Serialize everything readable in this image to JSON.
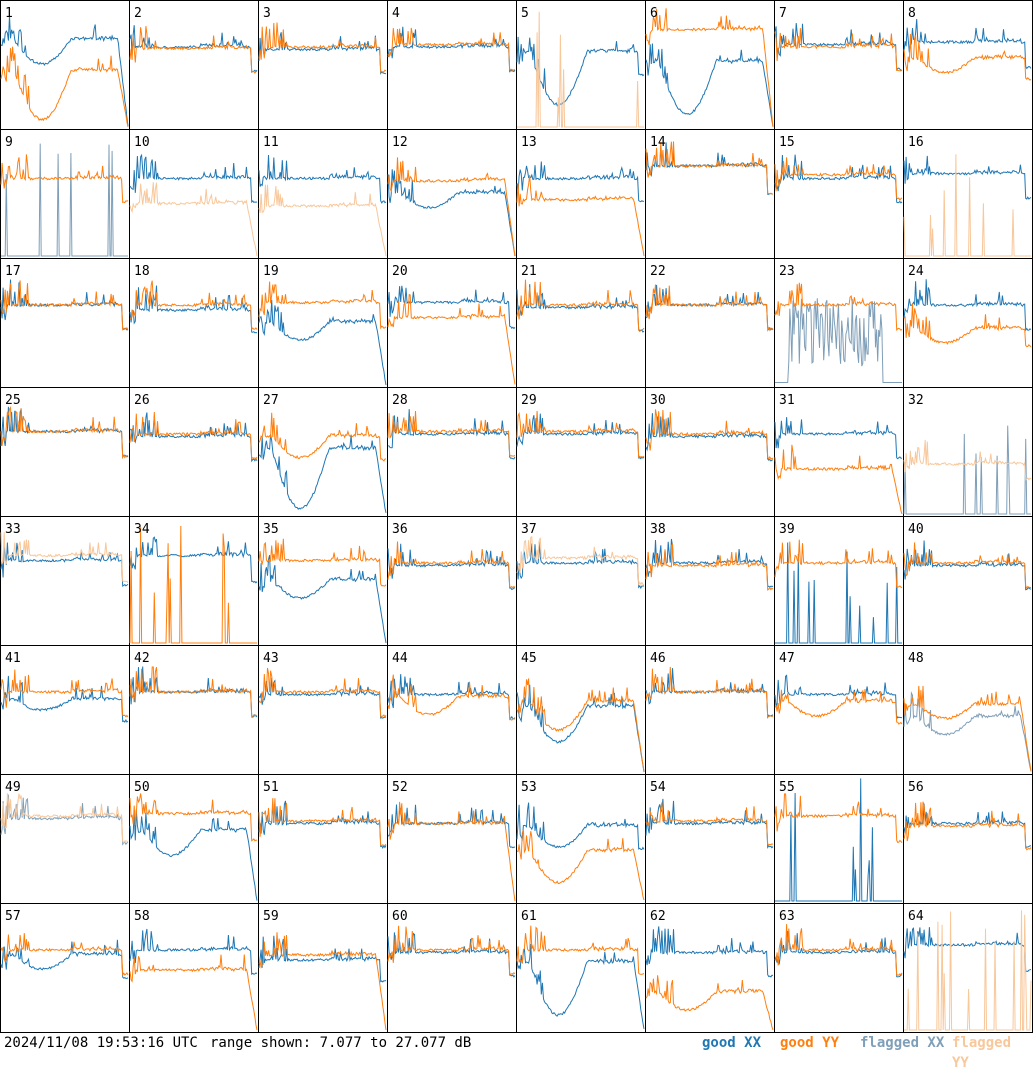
{
  "footer": {
    "timestamp": "2024/11/08 19:53:16 UTC",
    "range_text": "range shown: 7.077 to 27.077 dB"
  },
  "legend": [
    {
      "label": "good XX",
      "color": "#1f77b4"
    },
    {
      "label": "good YY",
      "color": "#ff7f0e"
    },
    {
      "label": "flagged XX",
      "color": "#7f9fb8"
    },
    {
      "label": "flagged YY",
      "color": "#f8c79a"
    }
  ],
  "chart_data": {
    "type": "line",
    "ylim": [
      7.077,
      27.077
    ],
    "yunit": "dB",
    "grid": "8x8 small multiples",
    "panels": [
      {
        "label": "1",
        "xx": {
          "level": 70,
          "shape": "dip",
          "dipDepth": 14,
          "drop": 1,
          "flag": false
        },
        "yy": {
          "level": 45,
          "shape": "dip",
          "dipDepth": 28,
          "drop": 1,
          "flag": false
        }
      },
      {
        "label": "2",
        "xx": {
          "level": 64,
          "shape": "flat",
          "drop": 0,
          "flag": false
        },
        "yy": {
          "level": 63,
          "shape": "flat",
          "drop": 0,
          "flag": false
        }
      },
      {
        "label": "3",
        "xx": {
          "level": 62,
          "shape": "flat",
          "drop": 0,
          "flag": false
        },
        "yy": {
          "level": 64,
          "shape": "flat",
          "drop": 0,
          "flag": false
        }
      },
      {
        "label": "4",
        "xx": {
          "level": 64,
          "shape": "flat",
          "drop": 0,
          "flag": false
        },
        "yy": {
          "level": 66,
          "shape": "flat",
          "drop": 0,
          "flag": false
        }
      },
      {
        "label": "5",
        "xx": {
          "level": 60,
          "shape": "dip",
          "dipDepth": 30,
          "drop": 0,
          "flag": false
        },
        "yy": {
          "level": 0,
          "shape": "spikes",
          "drop": 0,
          "flag": true
        }
      },
      {
        "label": "6",
        "xx": {
          "level": 52,
          "shape": "dip",
          "dipDepth": 30,
          "drop": 1,
          "flag": false
        },
        "yy": {
          "level": 78,
          "shape": "flat",
          "drop": 1,
          "flag": false
        }
      },
      {
        "label": "7",
        "xx": {
          "level": 66,
          "shape": "flat",
          "drop": 0,
          "flag": false
        },
        "yy": {
          "level": 64,
          "shape": "flat",
          "drop": 0,
          "flag": false
        }
      },
      {
        "label": "8",
        "xx": {
          "level": 68,
          "shape": "flat",
          "drop": 0,
          "flag": false
        },
        "yy": {
          "level": 55,
          "shape": "dip",
          "dipDepth": 8,
          "drop": 0,
          "flag": false
        }
      },
      {
        "label": "9",
        "xx": {
          "level": 0,
          "shape": "spikes",
          "drop": 0,
          "flag": true
        },
        "yy": {
          "level": 62,
          "shape": "flat",
          "drop": 0,
          "flag": false
        }
      },
      {
        "label": "10",
        "xx": {
          "level": 62,
          "shape": "flat",
          "drop": 0,
          "flag": false
        },
        "yy": {
          "level": 42,
          "shape": "flat",
          "drop": 1,
          "flag": true
        }
      },
      {
        "label": "11",
        "xx": {
          "level": 62,
          "shape": "flat",
          "drop": 0,
          "flag": false
        },
        "yy": {
          "level": 40,
          "shape": "flat",
          "drop": 1,
          "flag": true
        }
      },
      {
        "label": "12",
        "xx": {
          "level": 50,
          "shape": "dip",
          "dipDepth": 8,
          "drop": 1,
          "flag": false
        },
        "yy": {
          "level": 60,
          "shape": "flat",
          "drop": 1,
          "flag": false
        }
      },
      {
        "label": "13",
        "xx": {
          "level": 62,
          "shape": "flat",
          "drop": 0,
          "flag": false
        },
        "yy": {
          "level": 45,
          "shape": "flat",
          "drop": 1,
          "flag": false
        }
      },
      {
        "label": "14",
        "xx": {
          "level": 72,
          "shape": "flat",
          "drop": 0,
          "flag": false
        },
        "yy": {
          "level": 72,
          "shape": "flat",
          "drop": 0,
          "flag": false
        }
      },
      {
        "label": "15",
        "xx": {
          "level": 62,
          "shape": "flat",
          "drop": 0,
          "flag": false
        },
        "yy": {
          "level": 65,
          "shape": "flat",
          "drop": 0,
          "flag": false
        }
      },
      {
        "label": "16",
        "xx": {
          "level": 66,
          "shape": "flat",
          "drop": 0,
          "flag": false
        },
        "yy": {
          "level": 0,
          "shape": "spikes",
          "drop": 0,
          "flag": true
        }
      },
      {
        "label": "17",
        "xx": {
          "level": 64,
          "shape": "flat",
          "drop": 0,
          "flag": false
        },
        "yy": {
          "level": 64,
          "shape": "flat",
          "drop": 0,
          "flag": false
        }
      },
      {
        "label": "18",
        "xx": {
          "level": 60,
          "shape": "flat",
          "drop": 0,
          "flag": false
        },
        "yy": {
          "level": 64,
          "shape": "flat",
          "drop": 0,
          "flag": false
        }
      },
      {
        "label": "19",
        "xx": {
          "level": 50,
          "shape": "dip",
          "dipDepth": 10,
          "drop": 1,
          "flag": false
        },
        "yy": {
          "level": 66,
          "shape": "flat",
          "drop": 0,
          "flag": false
        }
      },
      {
        "label": "20",
        "xx": {
          "level": 66,
          "shape": "flat",
          "drop": 0,
          "flag": false
        },
        "yy": {
          "level": 54,
          "shape": "flat",
          "drop": 1,
          "flag": false
        }
      },
      {
        "label": "21",
        "xx": {
          "level": 62,
          "shape": "flat",
          "drop": 0,
          "flag": false
        },
        "yy": {
          "level": 64,
          "shape": "flat",
          "drop": 0,
          "flag": false
        }
      },
      {
        "label": "22",
        "xx": {
          "level": 64,
          "shape": "flat",
          "drop": 0,
          "flag": false
        },
        "yy": {
          "level": 64,
          "shape": "flat",
          "drop": 0,
          "flag": false
        }
      },
      {
        "label": "23",
        "xx": {
          "level": 30,
          "shape": "noise",
          "drop": 0,
          "flag": true
        },
        "yy": {
          "level": 64,
          "shape": "flat",
          "drop": 0,
          "flag": false
        }
      },
      {
        "label": "24",
        "xx": {
          "level": 64,
          "shape": "flat",
          "drop": 0,
          "flag": false
        },
        "yy": {
          "level": 45,
          "shape": "dip",
          "dipDepth": 8,
          "drop": 0,
          "flag": false
        }
      },
      {
        "label": "25",
        "xx": {
          "level": 66,
          "shape": "flat",
          "drop": 0,
          "flag": false
        },
        "yy": {
          "level": 66,
          "shape": "flat",
          "drop": 0,
          "flag": false
        }
      },
      {
        "label": "26",
        "xx": {
          "level": 62,
          "shape": "flat",
          "drop": 0,
          "flag": false
        },
        "yy": {
          "level": 64,
          "shape": "flat",
          "drop": 0,
          "flag": false
        }
      },
      {
        "label": "27",
        "xx": {
          "level": 52,
          "shape": "dip",
          "dipDepth": 34,
          "drop": 1,
          "flag": false
        },
        "yy": {
          "level": 62,
          "shape": "dip",
          "dipDepth": 12,
          "drop": 0,
          "flag": false
        }
      },
      {
        "label": "28",
        "xx": {
          "level": 64,
          "shape": "flat",
          "drop": 0,
          "flag": false
        },
        "yy": {
          "level": 66,
          "shape": "flat",
          "drop": 0,
          "flag": false
        }
      },
      {
        "label": "29",
        "xx": {
          "level": 64,
          "shape": "flat",
          "drop": 0,
          "flag": false
        },
        "yy": {
          "level": 66,
          "shape": "flat",
          "drop": 0,
          "flag": false
        }
      },
      {
        "label": "30",
        "xx": {
          "level": 62,
          "shape": "flat",
          "drop": 0,
          "flag": false
        },
        "yy": {
          "level": 64,
          "shape": "flat",
          "drop": 0,
          "flag": false
        }
      },
      {
        "label": "31",
        "xx": {
          "level": 64,
          "shape": "flat",
          "drop": 0,
          "flag": false
        },
        "yy": {
          "level": 36,
          "shape": "flat",
          "drop": 1,
          "flag": false
        }
      },
      {
        "label": "32",
        "xx": {
          "level": 0,
          "shape": "spikes",
          "drop": 0,
          "flag": true
        },
        "yy": {
          "level": 40,
          "shape": "flat",
          "drop": 0,
          "flag": true
        }
      },
      {
        "label": "33",
        "xx": {
          "level": 66,
          "shape": "flat",
          "drop": 0,
          "flag": false
        },
        "yy": {
          "level": 70,
          "shape": "flat",
          "drop": 0,
          "flag": true
        }
      },
      {
        "label": "34",
        "xx": {
          "level": 70,
          "shape": "flat",
          "drop": 0,
          "flag": false
        },
        "yy": {
          "level": 0,
          "shape": "spikes",
          "drop": 0,
          "flag": false
        }
      },
      {
        "label": "35",
        "xx": {
          "level": 50,
          "shape": "dip",
          "dipDepth": 10,
          "drop": 1,
          "flag": false
        },
        "yy": {
          "level": 66,
          "shape": "flat",
          "drop": 0,
          "flag": false
        }
      },
      {
        "label": "36",
        "xx": {
          "level": 62,
          "shape": "flat",
          "drop": 0,
          "flag": false
        },
        "yy": {
          "level": 64,
          "shape": "flat",
          "drop": 0,
          "flag": false
        }
      },
      {
        "label": "37",
        "xx": {
          "level": 64,
          "shape": "flat",
          "drop": 0,
          "flag": false
        },
        "yy": {
          "level": 68,
          "shape": "flat",
          "drop": 0,
          "flag": true
        }
      },
      {
        "label": "38",
        "xx": {
          "level": 64,
          "shape": "flat",
          "drop": 0,
          "flag": false
        },
        "yy": {
          "level": 62,
          "shape": "flat",
          "drop": 0,
          "flag": false
        }
      },
      {
        "label": "39",
        "xx": {
          "level": 0,
          "shape": "spikes",
          "drop": 0,
          "flag": false
        },
        "yy": {
          "level": 64,
          "shape": "flat",
          "drop": 0,
          "flag": false
        }
      },
      {
        "label": "40",
        "xx": {
          "level": 62,
          "shape": "flat",
          "drop": 0,
          "flag": false
        },
        "yy": {
          "level": 64,
          "shape": "flat",
          "drop": 0,
          "flag": false
        }
      },
      {
        "label": "41",
        "xx": {
          "level": 58,
          "shape": "dip",
          "dipDepth": 6,
          "drop": 0,
          "flag": false
        },
        "yy": {
          "level": 64,
          "shape": "flat",
          "drop": 0,
          "flag": false
        }
      },
      {
        "label": "42",
        "xx": {
          "level": 64,
          "shape": "flat",
          "drop": 0,
          "flag": false
        },
        "yy": {
          "level": 64,
          "shape": "flat",
          "drop": 0,
          "flag": false
        }
      },
      {
        "label": "43",
        "xx": {
          "level": 62,
          "shape": "flat",
          "drop": 0,
          "flag": false
        },
        "yy": {
          "level": 64,
          "shape": "flat",
          "drop": 0,
          "flag": false
        }
      },
      {
        "label": "44",
        "xx": {
          "level": 62,
          "shape": "flat",
          "drop": 0,
          "flag": false
        },
        "yy": {
          "level": 60,
          "shape": "dip",
          "dipDepth": 10,
          "drop": 0,
          "flag": false
        }
      },
      {
        "label": "45",
        "xx": {
          "level": 52,
          "shape": "dip",
          "dipDepth": 20,
          "drop": 1,
          "flag": false
        },
        "yy": {
          "level": 56,
          "shape": "dip",
          "dipDepth": 16,
          "drop": 1,
          "flag": false
        }
      },
      {
        "label": "46",
        "xx": {
          "level": 64,
          "shape": "flat",
          "drop": 0,
          "flag": false
        },
        "yy": {
          "level": 64,
          "shape": "flat",
          "drop": 0,
          "flag": false
        }
      },
      {
        "label": "47",
        "xx": {
          "level": 62,
          "shape": "flat",
          "drop": 0,
          "flag": false
        },
        "yy": {
          "level": 56,
          "shape": "dip",
          "dipDepth": 8,
          "drop": 0,
          "flag": false
        }
      },
      {
        "label": "48",
        "xx": {
          "level": 44,
          "shape": "dip",
          "dipDepth": 10,
          "drop": 1,
          "flag": true
        },
        "yy": {
          "level": 54,
          "shape": "dip",
          "dipDepth": 8,
          "drop": 1,
          "flag": false
        }
      },
      {
        "label": "49",
        "xx": {
          "level": 66,
          "shape": "flat",
          "drop": 0,
          "flag": true
        },
        "yy": {
          "level": 68,
          "shape": "flat",
          "drop": 0,
          "flag": true
        }
      },
      {
        "label": "50",
        "xx": {
          "level": 56,
          "shape": "dip",
          "dipDepth": 14,
          "drop": 1,
          "flag": false
        },
        "yy": {
          "level": 70,
          "shape": "flat",
          "drop": 0,
          "flag": false
        }
      },
      {
        "label": "51",
        "xx": {
          "level": 62,
          "shape": "flat",
          "drop": 0,
          "flag": false
        },
        "yy": {
          "level": 64,
          "shape": "flat",
          "drop": 0,
          "flag": false
        }
      },
      {
        "label": "52",
        "xx": {
          "level": 62,
          "shape": "flat",
          "drop": 0,
          "flag": false
        },
        "yy": {
          "level": 62,
          "shape": "flat",
          "drop": 1,
          "flag": false
        }
      },
      {
        "label": "53",
        "xx": {
          "level": 60,
          "shape": "dip",
          "dipDepth": 12,
          "drop": 0,
          "flag": false
        },
        "yy": {
          "level": 40,
          "shape": "dip",
          "dipDepth": 18,
          "drop": 1,
          "flag": false
        }
      },
      {
        "label": "54",
        "xx": {
          "level": 62,
          "shape": "flat",
          "drop": 0,
          "flag": false
        },
        "yy": {
          "level": 64,
          "shape": "flat",
          "drop": 0,
          "flag": false
        }
      },
      {
        "label": "55",
        "xx": {
          "level": 0,
          "shape": "spikes",
          "drop": 0,
          "flag": false
        },
        "yy": {
          "level": 68,
          "shape": "flat",
          "drop": 0,
          "flag": false
        }
      },
      {
        "label": "56",
        "xx": {
          "level": 62,
          "shape": "flat",
          "drop": 0,
          "flag": false
        },
        "yy": {
          "level": 60,
          "shape": "flat",
          "drop": 0,
          "flag": false
        }
      },
      {
        "label": "57",
        "xx": {
          "level": 60,
          "shape": "dip",
          "dipDepth": 8,
          "drop": 0,
          "flag": false
        },
        "yy": {
          "level": 64,
          "shape": "flat",
          "drop": 0,
          "flag": false
        }
      },
      {
        "label": "58",
        "xx": {
          "level": 64,
          "shape": "flat",
          "drop": 0,
          "flag": false
        },
        "yy": {
          "level": 48,
          "shape": "flat",
          "drop": 1,
          "flag": false
        }
      },
      {
        "label": "59",
        "xx": {
          "level": 56,
          "shape": "flat",
          "drop": 0,
          "flag": false
        },
        "yy": {
          "level": 60,
          "shape": "flat",
          "drop": 1,
          "flag": false
        }
      },
      {
        "label": "60",
        "xx": {
          "level": 62,
          "shape": "flat",
          "drop": 0,
          "flag": false
        },
        "yy": {
          "level": 64,
          "shape": "flat",
          "drop": 0,
          "flag": false
        }
      },
      {
        "label": "61",
        "xx": {
          "level": 54,
          "shape": "dip",
          "dipDepth": 30,
          "drop": 1,
          "flag": false
        },
        "yy": {
          "level": 64,
          "shape": "flat",
          "drop": 0,
          "flag": false
        }
      },
      {
        "label": "62",
        "xx": {
          "level": 62,
          "shape": "flat",
          "drop": 0,
          "flag": false
        },
        "yy": {
          "level": 30,
          "shape": "dip",
          "dipDepth": 10,
          "drop": 1,
          "flag": false
        }
      },
      {
        "label": "63",
        "xx": {
          "level": 62,
          "shape": "flat",
          "drop": 0,
          "flag": false
        },
        "yy": {
          "level": 64,
          "shape": "flat",
          "drop": 0,
          "flag": false
        }
      },
      {
        "label": "64",
        "xx": {
          "level": 68,
          "shape": "flat",
          "drop": 0,
          "flag": false
        },
        "yy": {
          "level": 0,
          "shape": "spikes",
          "drop": 0,
          "flag": true
        }
      }
    ]
  }
}
